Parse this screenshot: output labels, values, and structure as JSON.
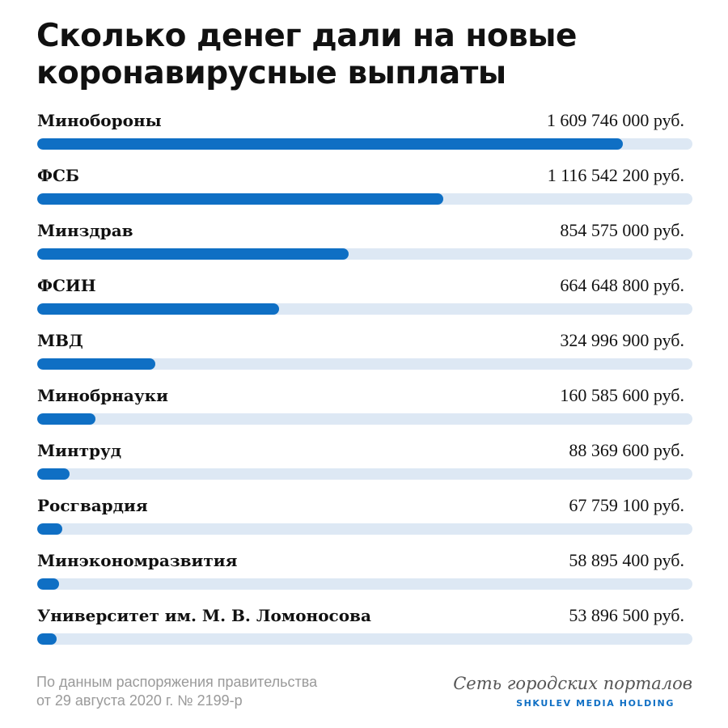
{
  "chart_data": {
    "type": "bar",
    "orientation": "horizontal",
    "title": "Сколько денег дали на новые коронавирусные выплаты",
    "unit": "руб.",
    "categories": [
      "Минобороны",
      "ФСБ",
      "Минздрав",
      "ФСИН",
      "МВД",
      "Минобрнауки",
      "Минтруд",
      "Росгвардия",
      "Минэкономразвития",
      "Университет им. М. В. Ломоносова"
    ],
    "values": [
      1609746000,
      1116542200,
      854575000,
      664648800,
      324996900,
      160585600,
      88369600,
      67759100,
      58895400,
      53896500
    ],
    "value_labels": [
      "1 609 746 000  руб.",
      "1 116 542 200 руб.",
      "854 575 000 руб.",
      "664 648 800 руб.",
      "324 996 900 руб.",
      "160 585 600 руб.",
      "88 369 600 руб.",
      "67 759 100 руб.",
      "58 895 400 руб.",
      "53 896 500 руб."
    ],
    "xlim": [
      0,
      1800000000
    ],
    "grid": false,
    "legend": "none",
    "colors": {
      "bar": "#0f6fc4",
      "track": "#dde8f4"
    }
  },
  "source": {
    "line1": "По данным распоряжения правительства",
    "line2": "от 29 августа 2020 г. № 2199-р"
  },
  "brand": {
    "name": "Сеть городских порталов",
    "holding": "SHKULEV MEDIA HOLDING"
  }
}
